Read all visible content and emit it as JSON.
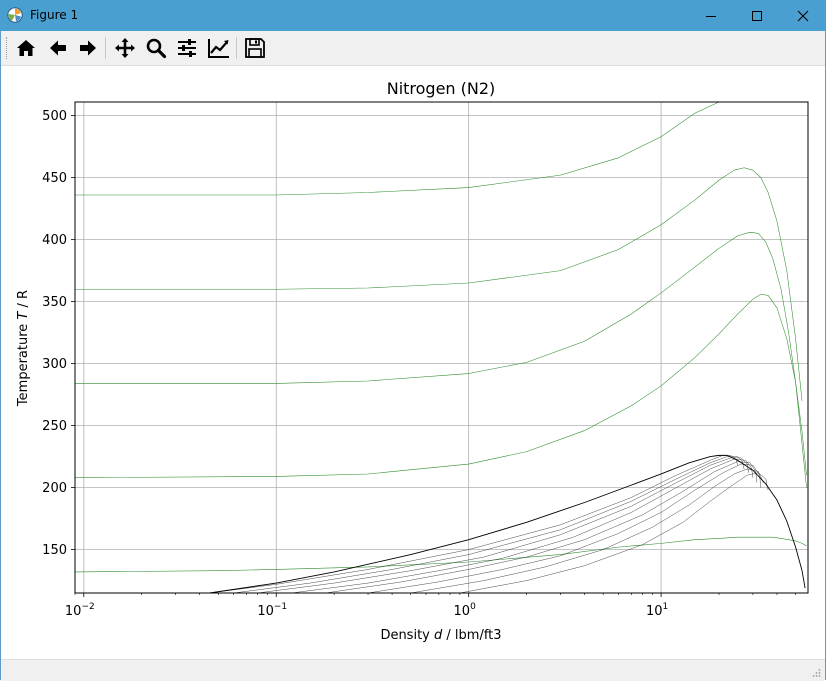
{
  "window": {
    "title": "Figure 1",
    "app_icon": "matplotlib-icon",
    "controls": [
      "minimize-icon",
      "maximize-icon",
      "close-icon"
    ]
  },
  "toolbar": {
    "buttons": [
      {
        "name": "home-button",
        "icon": "home-icon"
      },
      {
        "name": "back-button",
        "icon": "arrow-left-icon"
      },
      {
        "name": "forward-button",
        "icon": "arrow-right-icon"
      },
      {
        "name": "pan-button",
        "icon": "move-icon"
      },
      {
        "name": "zoom-button",
        "icon": "magnifier-icon"
      },
      {
        "name": "configure-subplots-button",
        "icon": "sliders-icon"
      },
      {
        "name": "edit-axes-button",
        "icon": "line-chart-icon"
      },
      {
        "name": "save-button",
        "icon": "floppy-disk-icon"
      }
    ]
  },
  "chart_data": {
    "type": "line",
    "title": "Nitrogen (N2)",
    "xlabel_prefix": "Density ",
    "xlabel_var": "d",
    "xlabel_suffix": " / lbm/ft3",
    "ylabel_prefix": "Temperature ",
    "ylabel_var": "T",
    "ylabel_suffix": " / R",
    "xscale": "log",
    "xlim": [
      0.009,
      58
    ],
    "ylim": [
      115,
      511
    ],
    "grid": true,
    "xticks": [
      {
        "value": 0.01,
        "base": "10",
        "exp": "−2"
      },
      {
        "value": 0.1,
        "base": "10",
        "exp": "−1"
      },
      {
        "value": 1,
        "base": "10",
        "exp": "0"
      },
      {
        "value": 10,
        "base": "10",
        "exp": "1"
      }
    ],
    "yticks": [
      {
        "value": 150,
        "label": "150"
      },
      {
        "value": 200,
        "label": "200"
      },
      {
        "value": 250,
        "label": "250"
      },
      {
        "value": 300,
        "label": "300"
      },
      {
        "value": 350,
        "label": "350"
      },
      {
        "value": 400,
        "label": "400"
      },
      {
        "value": 450,
        "label": "450"
      },
      {
        "value": 500,
        "label": "500"
      }
    ],
    "colors": {
      "isobars": "#2e8b2e",
      "isenthalps": "#1a1a1a",
      "saturation": "#000000"
    },
    "saturation_curve": {
      "x": [
        0.045,
        0.1,
        0.2,
        0.5,
        1.0,
        2.0,
        4.0,
        7.0,
        10.0,
        14.0,
        18.0,
        20.0,
        22.0,
        25.0,
        30.0,
        35.0,
        40.0,
        45.0,
        50.0,
        54.0,
        56.0
      ],
      "y": [
        115,
        123,
        132,
        146,
        158,
        172,
        188,
        202,
        211,
        220,
        225,
        226,
        226,
        222,
        214,
        203,
        190,
        173,
        152,
        133,
        119
      ]
    },
    "isobars": [
      {
        "x": [
          0.009,
          0.05,
          0.1,
          0.3,
          1.0,
          3.0,
          6.0,
          10.0,
          15.0,
          20.0,
          22.0,
          25.0,
          30.0
        ],
        "y": [
          436,
          436,
          436,
          438,
          442,
          452,
          466,
          483,
          502,
          511,
          511,
          512,
          515
        ]
      },
      {
        "x": [
          0.009,
          0.1,
          0.3,
          1.0,
          3.0,
          6.0,
          10.0,
          15.0,
          20.0,
          24.0,
          27.0,
          30.0,
          33.0,
          36.0,
          40.0,
          45.0,
          50.0,
          54.0
        ],
        "y": [
          360,
          360,
          361,
          365,
          375,
          392,
          412,
          432,
          448,
          456,
          458,
          456,
          450,
          438,
          415,
          375,
          320,
          270
        ]
      },
      {
        "x": [
          0.009,
          0.1,
          0.3,
          1.0,
          2.0,
          4.0,
          7.0,
          10.0,
          15.0,
          20.0,
          25.0,
          29.0,
          32.0,
          35.0,
          38.0,
          42.0,
          46.0,
          50.0,
          54.0,
          57.0
        ],
        "y": [
          284,
          284,
          286,
          292,
          301,
          318,
          340,
          357,
          378,
          393,
          403,
          406,
          405,
          398,
          385,
          360,
          325,
          285,
          235,
          200
        ]
      },
      {
        "x": [
          0.009,
          0.1,
          0.3,
          1.0,
          2.0,
          4.0,
          7.0,
          10.0,
          15.0,
          20.0,
          25.0,
          30.0,
          33.0,
          36.0,
          40.0,
          45.0,
          50.0,
          54.0,
          57.0
        ],
        "y": [
          208,
          209,
          211,
          219,
          229,
          246,
          266,
          282,
          305,
          324,
          340,
          352,
          356,
          355,
          345,
          320,
          285,
          245,
          210
        ]
      },
      {
        "x": [
          0.009,
          0.05,
          0.1,
          0.3,
          1.0,
          3.0,
          6.0,
          10.0,
          15.0,
          20.0,
          25.0,
          30.0,
          34.0,
          38.0,
          42.0,
          46.0,
          50.0,
          54.0,
          57.0
        ],
        "y": [
          132,
          133,
          134,
          136,
          140,
          146,
          152,
          155,
          158,
          159,
          160,
          160,
          160,
          160,
          159,
          158,
          157,
          155,
          153
        ]
      }
    ],
    "isenthalps": [
      {
        "x": [
          0.045,
          0.1,
          0.3,
          1.0,
          3.0,
          7.0,
          12.0,
          18.0,
          21.0,
          23.0,
          24.5,
          25.0
        ],
        "y": [
          115,
          122,
          134,
          150,
          170,
          192,
          210,
          222,
          226,
          226,
          223,
          218
        ]
      },
      {
        "x": [
          0.06,
          0.15,
          0.4,
          1.0,
          3.0,
          7.0,
          12.0,
          18.0,
          22.0,
          25.0,
          26.5,
          27.0
        ],
        "y": [
          115,
          123,
          134,
          146,
          166,
          189,
          207,
          220,
          225,
          225,
          221,
          215
        ]
      },
      {
        "x": [
          0.08,
          0.2,
          0.5,
          1.2,
          3.0,
          7.0,
          12.0,
          18.0,
          23.0,
          26.0,
          28.0,
          28.5
        ],
        "y": [
          115,
          123,
          133,
          144,
          162,
          185,
          204,
          218,
          224,
          224,
          219,
          212
        ]
      },
      {
        "x": [
          0.12,
          0.3,
          0.7,
          1.5,
          3.5,
          7.0,
          12.0,
          18.0,
          24.0,
          27.5,
          29.5,
          30.0
        ],
        "y": [
          115,
          123,
          133,
          143,
          160,
          180,
          200,
          215,
          223,
          222,
          216,
          208
        ]
      },
      {
        "x": [
          0.18,
          0.45,
          1.0,
          2.0,
          4.0,
          8.0,
          13.0,
          19.0,
          25.0,
          29.0,
          31.0,
          31.5
        ],
        "y": [
          115,
          124,
          134,
          144,
          158,
          178,
          197,
          213,
          221,
          220,
          213,
          204
        ]
      },
      {
        "x": [
          0.3,
          0.7,
          1.5,
          3.0,
          6.0,
          10.0,
          15.0,
          21.0,
          26.0,
          30.0,
          32.5,
          33.0
        ],
        "y": [
          115,
          124,
          134,
          145,
          163,
          180,
          198,
          212,
          219,
          218,
          210,
          200
        ]
      },
      {
        "x": [
          0.5,
          1.2,
          2.5,
          5.0,
          9.0,
          14.0,
          19.0,
          24.0,
          28.0,
          32.0,
          34.0
        ],
        "y": [
          115,
          125,
          136,
          150,
          168,
          186,
          201,
          211,
          215,
          213,
          204
        ]
      },
      {
        "x": [
          0.9,
          2.0,
          4.0,
          8.0,
          13.0,
          18.0,
          23.0,
          28.0,
          32.0,
          35.0,
          36.0
        ],
        "y": [
          115,
          125,
          137,
          154,
          172,
          189,
          201,
          210,
          212,
          207,
          198
        ]
      }
    ]
  }
}
